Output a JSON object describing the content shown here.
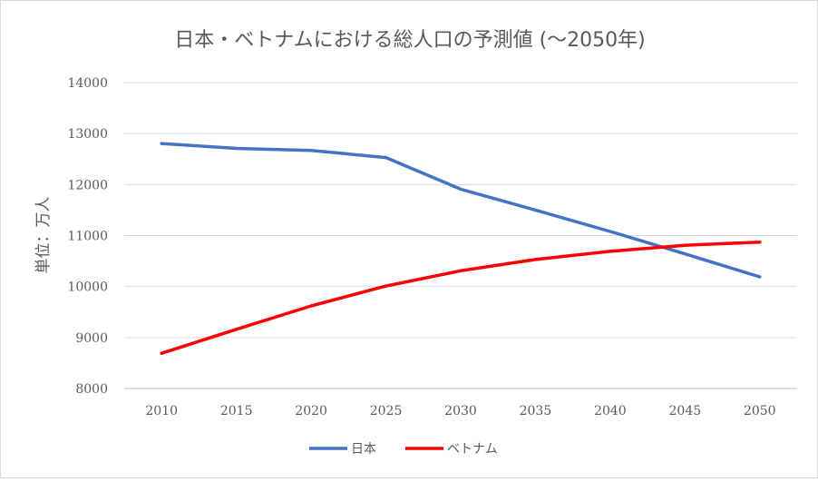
{
  "chart_data": {
    "type": "line",
    "title": "日本・ベトナムにおける総人口の予測値 (～2050年)",
    "xlabel": "",
    "ylabel": "単位：万人",
    "categories": [
      "2010",
      "2015",
      "2020",
      "2025",
      "2030",
      "2035",
      "2040",
      "2045",
      "2050"
    ],
    "ylim": [
      8000,
      14000
    ],
    "yticks": [
      "8000",
      "9000",
      "10000",
      "11000",
      "12000",
      "13000",
      "14000"
    ],
    "grid": true,
    "legend_position": "bottom",
    "series": [
      {
        "name": "日本",
        "color": "#4472C4",
        "values": [
          12806,
          12710,
          12670,
          12530,
          11910,
          11500,
          11080,
          10640,
          10190
        ]
      },
      {
        "name": "ベトナム",
        "color": "#FF0000",
        "values": [
          8690,
          9160,
          9620,
          10010,
          10310,
          10530,
          10690,
          10810,
          10870
        ]
      }
    ]
  }
}
